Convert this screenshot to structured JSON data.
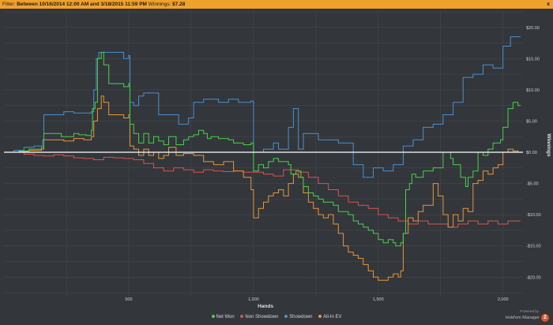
{
  "filter_bar": {
    "label": "Filter:",
    "value": "Between 10/16/2014 12:00 AM and 3/18/2015 11:59 PM",
    "winnings_label": "Winnings:",
    "winnings_value": "$7.28",
    "close_label": "x"
  },
  "branding": {
    "powered_by": "Powered by",
    "name": "Hold'em Manager",
    "badge": "2"
  },
  "colors": {
    "background": "#33373b",
    "grid": "#44484d",
    "zero_line": "#ffffff",
    "net_won": "#4ccf4c",
    "non_showdown": "#d9534f",
    "showdown": "#4a90d0",
    "all_in_ev": "#e8963a"
  },
  "chart_data": {
    "type": "line",
    "title": "",
    "xlabel": "Hands",
    "ylabel": "Winnings",
    "xlim": [
      0,
      2080
    ],
    "ylim": [
      -23,
      22.5
    ],
    "x_ticks": [
      500,
      1000,
      1500,
      2000
    ],
    "x_tick_labels": [
      "500",
      "1,000",
      "1,500",
      "2,000"
    ],
    "y_ticks": [
      20,
      15,
      10,
      5,
      0,
      -5,
      -10,
      -15,
      -20
    ],
    "y_tick_labels": [
      "$20.00",
      "$15.00",
      "$10.00",
      "$5.00",
      "$0.00",
      "-$5.00",
      "-$10.00",
      "-$15.00",
      "-$20.00"
    ],
    "grid": true,
    "legend_position": "bottom",
    "series": [
      {
        "name": "Net Won",
        "color": "#4ccf4c",
        "points": [
          [
            0,
            0
          ],
          [
            30,
            0
          ],
          [
            60,
            0.2
          ],
          [
            100,
            0.5
          ],
          [
            150,
            0.8
          ],
          [
            160,
            3
          ],
          [
            200,
            3
          ],
          [
            230,
            2.5
          ],
          [
            260,
            2.5
          ],
          [
            280,
            3
          ],
          [
            300,
            2.8
          ],
          [
            330,
            2.7
          ],
          [
            350,
            3.5
          ],
          [
            355,
            7
          ],
          [
            365,
            8
          ],
          [
            375,
            15
          ],
          [
            390,
            16
          ],
          [
            400,
            14
          ],
          [
            420,
            11
          ],
          [
            460,
            11
          ],
          [
            480,
            10.5
          ],
          [
            500,
            11
          ],
          [
            505,
            4.5
          ],
          [
            520,
            3
          ],
          [
            540,
            1.5
          ],
          [
            560,
            3
          ],
          [
            580,
            1.5
          ],
          [
            600,
            2.5
          ],
          [
            620,
            1.8
          ],
          [
            640,
            1.2
          ],
          [
            660,
            2.5
          ],
          [
            690,
            1.2
          ],
          [
            720,
            2
          ],
          [
            740,
            2.5
          ],
          [
            760,
            2.8
          ],
          [
            780,
            3.5
          ],
          [
            800,
            3
          ],
          [
            815,
            2.2
          ],
          [
            830,
            2.5
          ],
          [
            860,
            2.2
          ],
          [
            900,
            2
          ],
          [
            920,
            1.5
          ],
          [
            960,
            1.2
          ],
          [
            990,
            1.5
          ],
          [
            1000,
            -3
          ],
          [
            1020,
            -2
          ],
          [
            1040,
            -2.5
          ],
          [
            1060,
            -1.5
          ],
          [
            1080,
            -1
          ],
          [
            1100,
            -1.5
          ],
          [
            1120,
            -1.5
          ],
          [
            1140,
            -2
          ],
          [
            1150,
            -3.5
          ],
          [
            1170,
            -3
          ],
          [
            1190,
            -4
          ],
          [
            1200,
            -5.5
          ],
          [
            1220,
            -6.5
          ],
          [
            1240,
            -7
          ],
          [
            1260,
            -7.5
          ],
          [
            1280,
            -8
          ],
          [
            1300,
            -8
          ],
          [
            1320,
            -8.5
          ],
          [
            1340,
            -9.5
          ],
          [
            1360,
            -9.5
          ],
          [
            1380,
            -10
          ],
          [
            1400,
            -11
          ],
          [
            1420,
            -11.5
          ],
          [
            1440,
            -12
          ],
          [
            1460,
            -12.5
          ],
          [
            1480,
            -13
          ],
          [
            1500,
            -14
          ],
          [
            1520,
            -14.5
          ],
          [
            1540,
            -14
          ],
          [
            1560,
            -14.5
          ],
          [
            1570,
            -15
          ],
          [
            1590,
            -14.5
          ],
          [
            1600,
            -13
          ],
          [
            1610,
            -6
          ],
          [
            1625,
            -5
          ],
          [
            1635,
            -3.5
          ],
          [
            1650,
            -4
          ],
          [
            1680,
            -3
          ],
          [
            1700,
            -3
          ],
          [
            1720,
            -2.5
          ],
          [
            1740,
            -2.5
          ],
          [
            1760,
            0
          ],
          [
            1790,
            -1
          ],
          [
            1800,
            -2
          ],
          [
            1830,
            -4
          ],
          [
            1850,
            -5.5
          ],
          [
            1860,
            -4
          ],
          [
            1880,
            -3
          ],
          [
            1900,
            0
          ],
          [
            1920,
            -0.5
          ],
          [
            1940,
            0.5
          ],
          [
            1960,
            1.5
          ],
          [
            1990,
            2
          ],
          [
            2000,
            4
          ],
          [
            2020,
            7
          ],
          [
            2040,
            8
          ],
          [
            2060,
            7.5
          ],
          [
            2070,
            7.5
          ]
        ]
      },
      {
        "name": "Non Showdown",
        "color": "#d9534f",
        "points": [
          [
            0,
            0
          ],
          [
            40,
            0
          ],
          [
            80,
            -0.3
          ],
          [
            120,
            -0.5
          ],
          [
            160,
            -0.6
          ],
          [
            200,
            -0.4
          ],
          [
            240,
            -0.6
          ],
          [
            280,
            -0.9
          ],
          [
            320,
            -1
          ],
          [
            360,
            -1.2
          ],
          [
            400,
            -0.8
          ],
          [
            440,
            -0.9
          ],
          [
            480,
            -1
          ],
          [
            520,
            -1.2
          ],
          [
            560,
            -1.8
          ],
          [
            600,
            -2.5
          ],
          [
            640,
            -3
          ],
          [
            680,
            -2.5
          ],
          [
            720,
            -2.8
          ],
          [
            760,
            -3.2
          ],
          [
            800,
            -2.8
          ],
          [
            840,
            -3
          ],
          [
            880,
            -3.1
          ],
          [
            920,
            -3
          ],
          [
            960,
            -3.2
          ],
          [
            1000,
            -3.2
          ],
          [
            1040,
            -3.5
          ],
          [
            1080,
            -3.8
          ],
          [
            1120,
            -2.8
          ],
          [
            1150,
            -2.8
          ],
          [
            1180,
            -3.2
          ],
          [
            1220,
            -4
          ],
          [
            1260,
            -5
          ],
          [
            1300,
            -6
          ],
          [
            1340,
            -7
          ],
          [
            1380,
            -8
          ],
          [
            1420,
            -8.5
          ],
          [
            1460,
            -9
          ],
          [
            1500,
            -10
          ],
          [
            1540,
            -10.5
          ],
          [
            1580,
            -11
          ],
          [
            1620,
            -11.5
          ],
          [
            1660,
            -11
          ],
          [
            1700,
            -11.5
          ],
          [
            1740,
            -11.5
          ],
          [
            1780,
            -12
          ],
          [
            1820,
            -11.5
          ],
          [
            1860,
            -11
          ],
          [
            1900,
            -11.5
          ],
          [
            1940,
            -11
          ],
          [
            1980,
            -11.5
          ],
          [
            2020,
            -11
          ],
          [
            2060,
            -11
          ],
          [
            2070,
            -11
          ]
        ]
      },
      {
        "name": "Showdown",
        "color": "#4a90d0",
        "points": [
          [
            0,
            0
          ],
          [
            40,
            0.3
          ],
          [
            80,
            0.8
          ],
          [
            120,
            1
          ],
          [
            155,
            2
          ],
          [
            160,
            6
          ],
          [
            200,
            6
          ],
          [
            240,
            6.5
          ],
          [
            280,
            6.3
          ],
          [
            320,
            6.3
          ],
          [
            350,
            6.5
          ],
          [
            360,
            10
          ],
          [
            370,
            15
          ],
          [
            380,
            16
          ],
          [
            420,
            16
          ],
          [
            460,
            16
          ],
          [
            480,
            15
          ],
          [
            500,
            15.5
          ],
          [
            505,
            8
          ],
          [
            520,
            7.5
          ],
          [
            540,
            9
          ],
          [
            560,
            9.5
          ],
          [
            600,
            9.5
          ],
          [
            620,
            6
          ],
          [
            640,
            6
          ],
          [
            690,
            6
          ],
          [
            700,
            4.5
          ],
          [
            740,
            5.5
          ],
          [
            760,
            8
          ],
          [
            800,
            8.5
          ],
          [
            840,
            8.5
          ],
          [
            860,
            8
          ],
          [
            900,
            8.5
          ],
          [
            940,
            8
          ],
          [
            990,
            8.2
          ],
          [
            1000,
            0
          ],
          [
            1040,
            0.5
          ],
          [
            1080,
            1.5
          ],
          [
            1100,
            0.5
          ],
          [
            1140,
            4
          ],
          [
            1160,
            7
          ],
          [
            1180,
            0.5
          ],
          [
            1200,
            3
          ],
          [
            1260,
            2
          ],
          [
            1340,
            1.5
          ],
          [
            1400,
            -2
          ],
          [
            1440,
            -4
          ],
          [
            1480,
            -2.5
          ],
          [
            1520,
            -3
          ],
          [
            1560,
            -2
          ],
          [
            1600,
            1
          ],
          [
            1640,
            2
          ],
          [
            1680,
            4
          ],
          [
            1720,
            4.5
          ],
          [
            1760,
            6
          ],
          [
            1800,
            8
          ],
          [
            1840,
            12
          ],
          [
            1880,
            12.5
          ],
          [
            1920,
            14
          ],
          [
            1960,
            13.5
          ],
          [
            2000,
            17
          ],
          [
            2030,
            18.5
          ],
          [
            2060,
            18.5
          ],
          [
            2070,
            18.5
          ]
        ]
      },
      {
        "name": "All-In EV",
        "color": "#e8963a",
        "points": [
          [
            0,
            0
          ],
          [
            30,
            0
          ],
          [
            60,
            0.1
          ],
          [
            100,
            0.3
          ],
          [
            150,
            0.5
          ],
          [
            160,
            2
          ],
          [
            200,
            2
          ],
          [
            240,
            1.8
          ],
          [
            280,
            2.2
          ],
          [
            320,
            2
          ],
          [
            350,
            2.5
          ],
          [
            360,
            5
          ],
          [
            375,
            7
          ],
          [
            390,
            9
          ],
          [
            400,
            8
          ],
          [
            420,
            6
          ],
          [
            460,
            6
          ],
          [
            480,
            5.5
          ],
          [
            500,
            6
          ],
          [
            505,
            1
          ],
          [
            520,
            0.5
          ],
          [
            540,
            -0.5
          ],
          [
            560,
            0.5
          ],
          [
            580,
            -0.5
          ],
          [
            600,
            0
          ],
          [
            620,
            -1
          ],
          [
            640,
            -0.5
          ],
          [
            660,
            0.8
          ],
          [
            690,
            -0.5
          ],
          [
            720,
            -0.2
          ],
          [
            760,
            -0.5
          ],
          [
            800,
            -1.5
          ],
          [
            840,
            -2
          ],
          [
            880,
            -1.5
          ],
          [
            920,
            -3
          ],
          [
            960,
            -4
          ],
          [
            990,
            -6
          ],
          [
            1000,
            -10.5
          ],
          [
            1020,
            -9
          ],
          [
            1040,
            -8
          ],
          [
            1060,
            -7
          ],
          [
            1080,
            -6.5
          ],
          [
            1100,
            -6
          ],
          [
            1120,
            -7
          ],
          [
            1140,
            -5
          ],
          [
            1160,
            -3.5
          ],
          [
            1180,
            -4
          ],
          [
            1200,
            -6.5
          ],
          [
            1220,
            -8
          ],
          [
            1240,
            -9
          ],
          [
            1260,
            -10
          ],
          [
            1280,
            -10.5
          ],
          [
            1300,
            -10
          ],
          [
            1320,
            -11.5
          ],
          [
            1340,
            -13
          ],
          [
            1360,
            -15
          ],
          [
            1380,
            -16
          ],
          [
            1400,
            -16.5
          ],
          [
            1420,
            -17
          ],
          [
            1440,
            -18
          ],
          [
            1460,
            -19
          ],
          [
            1480,
            -20
          ],
          [
            1500,
            -20.5
          ],
          [
            1520,
            -20.5
          ],
          [
            1540,
            -20
          ],
          [
            1560,
            -19.5
          ],
          [
            1580,
            -20
          ],
          [
            1590,
            -19
          ],
          [
            1600,
            -13
          ],
          [
            1620,
            -10.5
          ],
          [
            1640,
            -11
          ],
          [
            1660,
            -9.5
          ],
          [
            1680,
            -8.5
          ],
          [
            1700,
            -8.5
          ],
          [
            1720,
            -5
          ],
          [
            1740,
            -7
          ],
          [
            1760,
            -10
          ],
          [
            1780,
            -12
          ],
          [
            1800,
            -10
          ],
          [
            1820,
            -11
          ],
          [
            1840,
            -9
          ],
          [
            1860,
            -9.5
          ],
          [
            1880,
            -5
          ],
          [
            1900,
            -4.5
          ],
          [
            1920,
            -3
          ],
          [
            1940,
            -3.5
          ],
          [
            1960,
            -2.5
          ],
          [
            1980,
            -2
          ],
          [
            2000,
            0
          ],
          [
            2020,
            0.5
          ],
          [
            2040,
            0.2
          ],
          [
            2060,
            0
          ],
          [
            2070,
            0
          ]
        ]
      }
    ]
  }
}
